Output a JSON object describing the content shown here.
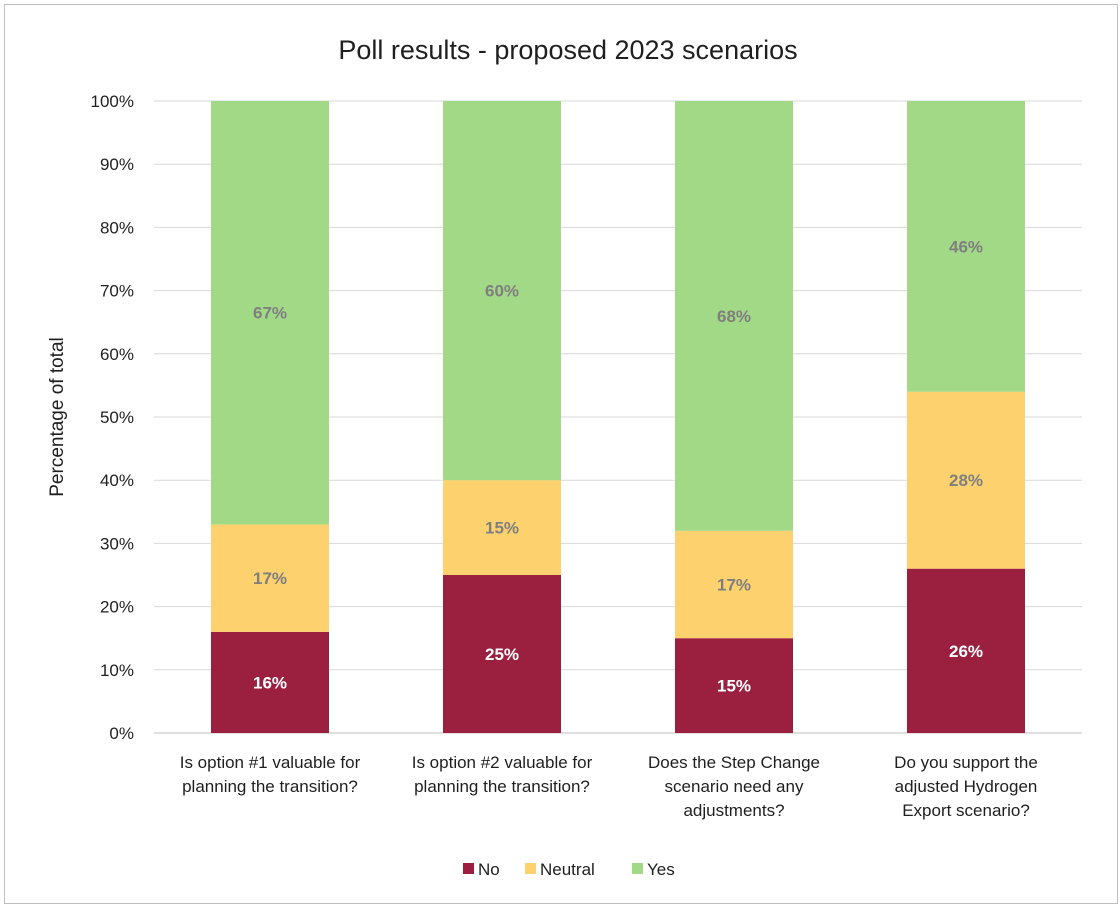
{
  "chart_data": {
    "type": "bar",
    "stacked": true,
    "title": "Poll results - proposed 2023 scenarios",
    "ylabel": "Percentage of total",
    "xlabel": "",
    "ylim": [
      0,
      100
    ],
    "yticks": [
      "0%",
      "10%",
      "20%",
      "30%",
      "40%",
      "50%",
      "60%",
      "70%",
      "80%",
      "90%",
      "100%"
    ],
    "grid": true,
    "legend_position": "bottom",
    "categories": [
      [
        "Is option #1 valuable for",
        "planning the transition?"
      ],
      [
        "Is option #2 valuable for",
        "planning the transition?"
      ],
      [
        "Does the Step Change",
        "scenario need any",
        "adjustments?"
      ],
      [
        "Do you support the",
        "adjusted Hydrogen",
        "Export scenario?"
      ]
    ],
    "series": [
      {
        "name": "No",
        "color": "#9b2040",
        "label_color": "#ffffff",
        "values": [
          16,
          25,
          15,
          26
        ],
        "labels": [
          "16%",
          "25%",
          "15%",
          "26%"
        ]
      },
      {
        "name": "Neutral",
        "color": "#fcd16e",
        "label_color": "#7f7f7f",
        "values": [
          17,
          15,
          17,
          28
        ],
        "labels": [
          "17%",
          "15%",
          "17%",
          "28%"
        ]
      },
      {
        "name": "Yes",
        "color": "#a2d986",
        "label_color": "#7f7f7f",
        "values": [
          67,
          60,
          68,
          46
        ],
        "labels": [
          "67%",
          "60%",
          "68%",
          "46%"
        ]
      }
    ]
  }
}
